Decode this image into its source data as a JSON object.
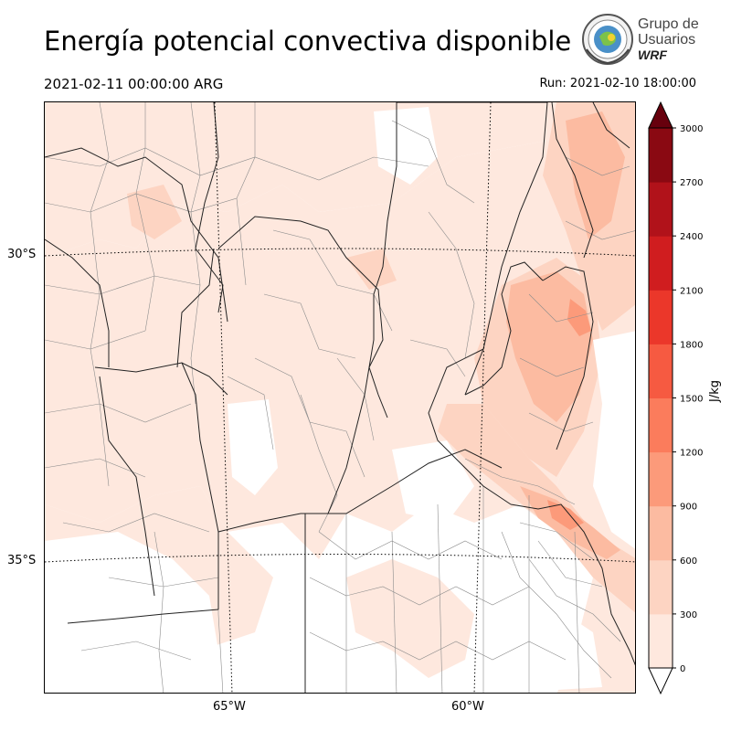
{
  "title": "Energía potencial convectiva disponible",
  "valid_time": "2021-02-11 00:00:00 ARG",
  "run_label": "Run: 2021-02-10 18:00:00",
  "logo": {
    "line1": "Grupo de",
    "line2": "Usuarios",
    "line3": "WRF",
    "icon": "globe-seal-icon"
  },
  "lat_labels": [
    "30°S",
    "35°S"
  ],
  "lon_labels": [
    "65°W",
    "60°W"
  ],
  "colorbar": {
    "unit": "J/kg",
    "ticks": [
      "0",
      "300",
      "600",
      "900",
      "1200",
      "1500",
      "1800",
      "2100",
      "2400",
      "2700",
      "3000"
    ],
    "colors": [
      "#fee8de",
      "#fdd4c2",
      "#fcbba1",
      "#fc9a7a",
      "#fb7c5c",
      "#f65a41",
      "#eb372a",
      "#d01d1f",
      "#b1121a",
      "#8a0912",
      "#67000d"
    ]
  },
  "colors": {
    "cape_light": "#fee8de",
    "cape_medium": "#fdd4c2",
    "cape_strong": "#fcbba1",
    "cape_peak": "#fc9a7a",
    "boundary": "#222222",
    "district": "#8c8c8c"
  }
}
